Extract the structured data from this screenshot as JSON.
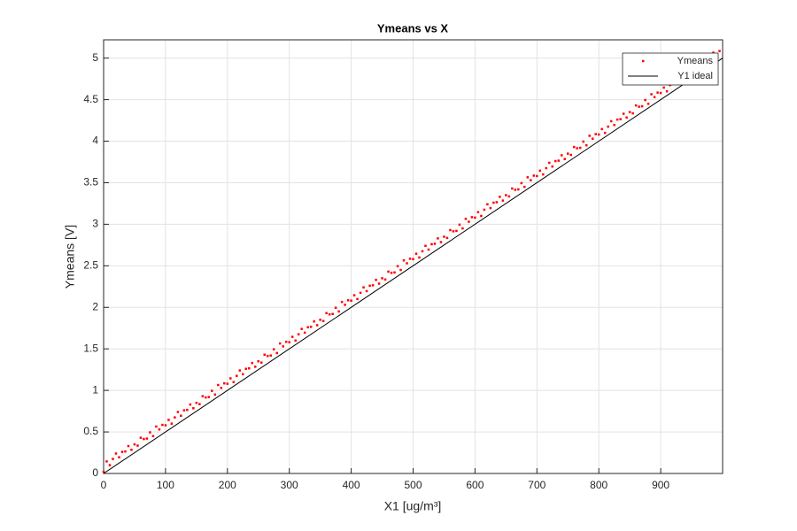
{
  "chart_data": {
    "type": "scatter",
    "title": "Ymeans vs X",
    "x_label": "X1 [ug/m³]",
    "y_label": "Ymeans [V]",
    "xlim": [
      0,
      1000
    ],
    "ylim": [
      0,
      5.22
    ],
    "xticks": [
      0,
      100,
      200,
      300,
      400,
      500,
      600,
      700,
      800,
      900
    ],
    "yticks": [
      0,
      0.5,
      1,
      1.5,
      2,
      2.5,
      3,
      3.5,
      4,
      4.5,
      5
    ],
    "grid": true,
    "legend": "northeast",
    "series": [
      {
        "name": "Ymeans",
        "color": "#ff0000",
        "mode": "markers",
        "x": [
          0,
          5,
          10,
          15,
          20,
          25,
          30,
          35,
          40,
          45,
          50,
          55,
          60,
          65,
          70,
          75,
          80,
          85,
          90,
          95,
          100,
          105,
          110,
          115,
          120,
          125,
          130,
          135,
          140,
          145,
          150,
          155,
          160,
          165,
          170,
          175,
          180,
          185,
          190,
          195,
          200,
          205,
          210,
          215,
          220,
          225,
          230,
          235,
          240,
          245,
          250,
          255,
          260,
          265,
          270,
          275,
          280,
          285,
          290,
          295,
          300,
          305,
          310,
          315,
          320,
          325,
          330,
          335,
          340,
          345,
          350,
          355,
          360,
          365,
          370,
          375,
          380,
          385,
          390,
          395,
          400,
          405,
          410,
          415,
          420,
          425,
          430,
          435,
          440,
          445,
          450,
          455,
          460,
          465,
          470,
          475,
          480,
          485,
          490,
          495,
          500,
          505,
          510,
          515,
          520,
          525,
          530,
          535,
          540,
          545,
          550,
          555,
          560,
          565,
          570,
          575,
          580,
          585,
          590,
          595,
          600,
          605,
          610,
          615,
          620,
          625,
          630,
          635,
          640,
          645,
          650,
          655,
          660,
          665,
          670,
          675,
          680,
          685,
          690,
          695,
          700,
          705,
          710,
          715,
          720,
          725,
          730,
          735,
          740,
          745,
          750,
          755,
          760,
          765,
          770,
          775,
          780,
          785,
          790,
          795,
          800,
          805,
          810,
          815,
          820,
          825,
          830,
          835,
          840,
          845,
          850,
          855,
          860,
          865,
          870,
          875,
          880,
          885,
          890,
          895,
          900,
          905,
          910,
          915,
          920,
          925,
          930,
          935,
          940,
          945,
          950,
          955,
          960,
          965,
          970,
          975,
          980,
          985,
          990,
          995
        ],
        "values": [
          0.02,
          0.145,
          0.1,
          0.175,
          0.24,
          0.195,
          0.26,
          0.265,
          0.33,
          0.285,
          0.35,
          0.335,
          0.43,
          0.415,
          0.42,
          0.495,
          0.45,
          0.565,
          0.53,
          0.585,
          0.58,
          0.645,
          0.6,
          0.675,
          0.74,
          0.695,
          0.76,
          0.765,
          0.83,
          0.785,
          0.85,
          0.835,
          0.93,
          0.915,
          0.92,
          0.995,
          0.95,
          1.065,
          1.03,
          1.085,
          1.08,
          1.145,
          1.1,
          1.175,
          1.24,
          1.195,
          1.26,
          1.265,
          1.33,
          1.285,
          1.35,
          1.335,
          1.43,
          1.415,
          1.42,
          1.495,
          1.45,
          1.565,
          1.53,
          1.585,
          1.58,
          1.645,
          1.6,
          1.675,
          1.74,
          1.695,
          1.76,
          1.765,
          1.83,
          1.785,
          1.85,
          1.835,
          1.93,
          1.915,
          1.92,
          1.995,
          1.95,
          2.065,
          2.03,
          2.085,
          2.08,
          2.145,
          2.1,
          2.175,
          2.24,
          2.195,
          2.26,
          2.265,
          2.33,
          2.285,
          2.35,
          2.335,
          2.43,
          2.415,
          2.42,
          2.495,
          2.45,
          2.565,
          2.53,
          2.585,
          2.58,
          2.645,
          2.6,
          2.675,
          2.74,
          2.695,
          2.76,
          2.765,
          2.83,
          2.785,
          2.85,
          2.835,
          2.93,
          2.915,
          2.92,
          2.995,
          2.95,
          3.065,
          3.03,
          3.085,
          3.08,
          3.145,
          3.1,
          3.175,
          3.24,
          3.195,
          3.26,
          3.265,
          3.33,
          3.285,
          3.35,
          3.335,
          3.43,
          3.415,
          3.42,
          3.495,
          3.45,
          3.565,
          3.53,
          3.585,
          3.58,
          3.645,
          3.6,
          3.675,
          3.74,
          3.695,
          3.76,
          3.765,
          3.83,
          3.785,
          3.85,
          3.835,
          3.93,
          3.915,
          3.92,
          3.995,
          3.95,
          4.065,
          4.03,
          4.085,
          4.08,
          4.145,
          4.1,
          4.175,
          4.24,
          4.195,
          4.26,
          4.265,
          4.33,
          4.285,
          4.35,
          4.335,
          4.43,
          4.415,
          4.42,
          4.495,
          4.45,
          4.565,
          4.53,
          4.585,
          4.58,
          4.645,
          4.6,
          4.675,
          4.74,
          4.695,
          4.76,
          4.765,
          4.83,
          4.785,
          4.85,
          4.835,
          4.93,
          4.915,
          4.92,
          4.995,
          4.95,
          5.065,
          5.03,
          5.085
        ]
      },
      {
        "name": "Y1 ideal",
        "color": "#000000",
        "mode": "line",
        "x": [
          0,
          1000
        ],
        "values": [
          0,
          5
        ]
      }
    ]
  }
}
